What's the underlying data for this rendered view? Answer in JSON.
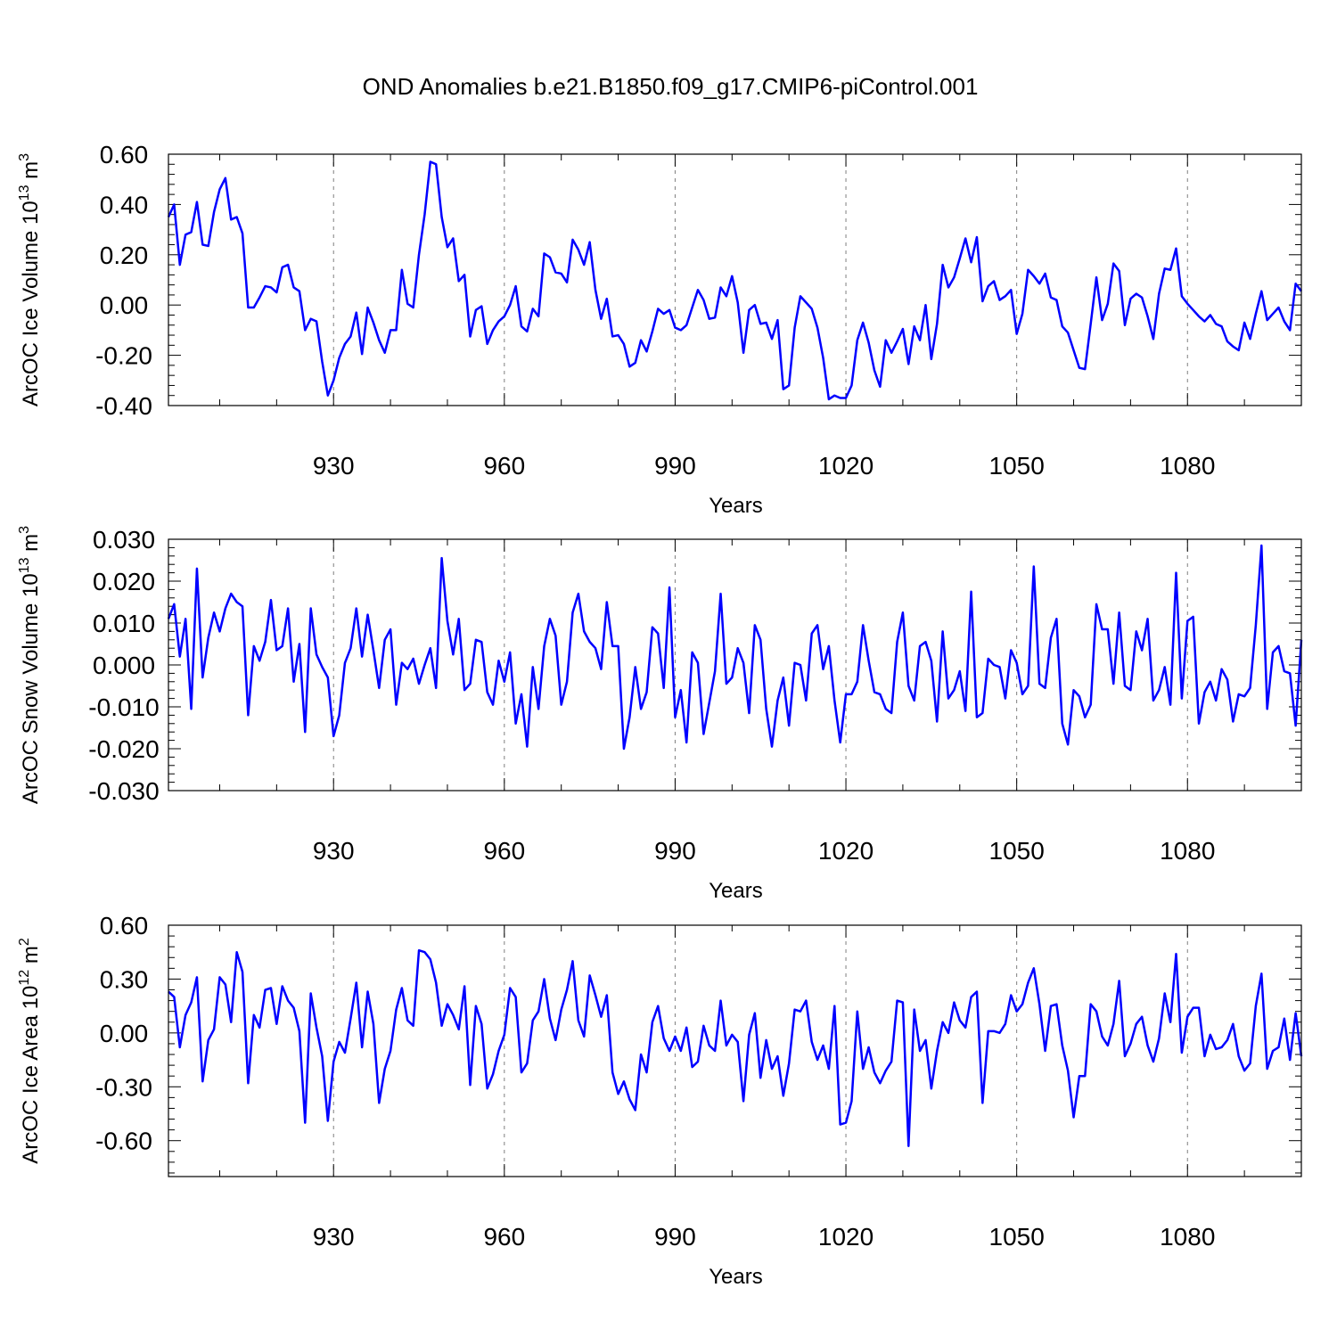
{
  "title": "OND Anomalies b.e21.B1850.f09_g17.CMIP6-piControl.001",
  "colors": {
    "line": "#0000ff",
    "axis": "#000000",
    "grid": "#7f7f7f",
    "background": "#ffffff"
  },
  "chart_data": [
    {
      "type": "line",
      "name": "ice-volume",
      "ylabel": "ArcOC Ice Volume 10",
      "ylabel_sup": "13",
      "ylabel_unit": " m",
      "ylabel_unit_sup": "3",
      "xlabel": "Years",
      "xlim": [
        901,
        1100
      ],
      "xticks": [
        930,
        960,
        990,
        1020,
        1050,
        1080
      ],
      "xtick_labels": [
        "930",
        "960",
        "990",
        "1020",
        "1050",
        "1080"
      ],
      "ylim": [
        -0.4,
        0.6
      ],
      "yticks": [
        -0.4,
        -0.2,
        0.0,
        0.2,
        0.4,
        0.6
      ],
      "ytick_labels": [
        "-0.40",
        "-0.20",
        "0.00",
        "0.20",
        "0.40",
        "0.60"
      ],
      "series": [
        {
          "name": "ArcOC Ice Volume",
          "values": [
            0.35,
            0.4,
            0.16,
            0.28,
            0.29,
            0.41,
            0.24,
            0.235,
            0.37,
            0.46,
            0.505,
            0.34,
            0.35,
            0.285,
            -0.01,
            -0.01,
            0.03,
            0.075,
            0.07,
            0.05,
            0.15,
            0.16,
            0.07,
            0.055,
            -0.1,
            -0.055,
            -0.065,
            -0.225,
            -0.36,
            -0.3,
            -0.21,
            -0.155,
            -0.125,
            -0.03,
            -0.195,
            -0.01,
            -0.07,
            -0.14,
            -0.19,
            -0.1,
            -0.1,
            0.14,
            0.005,
            -0.01,
            0.2,
            0.36,
            0.57,
            0.56,
            0.35,
            0.23,
            0.265,
            0.095,
            0.12,
            -0.125,
            -0.02,
            -0.005,
            -0.155,
            -0.1,
            -0.065,
            -0.045,
            0.0,
            0.075,
            -0.085,
            -0.105,
            -0.015,
            -0.045,
            0.205,
            0.19,
            0.13,
            0.125,
            0.09,
            0.26,
            0.22,
            0.16,
            0.25,
            0.06,
            -0.055,
            0.025,
            -0.125,
            -0.12,
            -0.155,
            -0.245,
            -0.23,
            -0.14,
            -0.185,
            -0.105,
            -0.015,
            -0.035,
            -0.02,
            -0.09,
            -0.1,
            -0.08,
            -0.01,
            0.06,
            0.02,
            -0.055,
            -0.05,
            0.07,
            0.035,
            0.115,
            0.01,
            -0.19,
            -0.02,
            0.0,
            -0.075,
            -0.07,
            -0.135,
            -0.06,
            -0.335,
            -0.32,
            -0.09,
            0.035,
            0.01,
            -0.015,
            -0.09,
            -0.21,
            -0.375,
            -0.36,
            -0.37,
            -0.37,
            -0.32,
            -0.14,
            -0.07,
            -0.15,
            -0.26,
            -0.325,
            -0.14,
            -0.19,
            -0.145,
            -0.095,
            -0.235,
            -0.085,
            -0.14,
            0.0,
            -0.215,
            -0.075,
            0.16,
            0.07,
            0.11,
            0.185,
            0.265,
            0.17,
            0.27,
            0.015,
            0.075,
            0.095,
            0.02,
            0.035,
            0.06,
            -0.115,
            -0.035,
            0.14,
            0.115,
            0.085,
            0.125,
            0.03,
            0.02,
            -0.085,
            -0.11,
            -0.18,
            -0.25,
            -0.255,
            -0.075,
            0.11,
            -0.06,
            0.005,
            0.165,
            0.135,
            -0.08,
            0.025,
            0.045,
            0.03,
            -0.045,
            -0.135,
            0.045,
            0.145,
            0.14,
            0.225,
            0.035,
            0.005,
            -0.02,
            -0.045,
            -0.065,
            -0.04,
            -0.075,
            -0.085,
            -0.145,
            -0.165,
            -0.18,
            -0.07,
            -0.135,
            -0.035,
            0.055,
            -0.06,
            -0.035,
            -0.01,
            -0.065,
            -0.1,
            0.085,
            0.055
          ]
        }
      ]
    },
    {
      "type": "line",
      "name": "snow-volume",
      "ylabel": "ArcOC Snow Volume 10",
      "ylabel_sup": "13",
      "ylabel_unit": " m",
      "ylabel_unit_sup": "3",
      "xlabel": "Years",
      "xlim": [
        901,
        1100
      ],
      "xticks": [
        930,
        960,
        990,
        1020,
        1050,
        1080
      ],
      "xtick_labels": [
        "930",
        "960",
        "990",
        "1020",
        "1050",
        "1080"
      ],
      "ylim": [
        -0.03,
        0.03
      ],
      "yticks": [
        -0.03,
        -0.02,
        -0.01,
        0.0,
        0.01,
        0.02,
        0.03
      ],
      "ytick_labels": [
        "-0.030",
        "-0.020",
        "-0.010",
        "0.000",
        "0.010",
        "0.020",
        "0.030"
      ],
      "series": [
        {
          "name": "ArcOC Snow Volume",
          "values": [
            0.011,
            0.0145,
            0.002,
            0.011,
            -0.0105,
            0.023,
            -0.003,
            0.0065,
            0.0125,
            0.008,
            0.0135,
            0.017,
            0.015,
            0.014,
            -0.012,
            0.0045,
            0.001,
            0.0055,
            0.0155,
            0.0035,
            0.0045,
            0.0135,
            -0.004,
            0.005,
            -0.016,
            0.0135,
            0.0025,
            -0.0005,
            -0.003,
            -0.017,
            -0.012,
            0.0005,
            0.004,
            0.0135,
            0.002,
            0.012,
            0.0035,
            -0.0055,
            0.006,
            0.0085,
            -0.0095,
            0.0005,
            -0.001,
            0.0015,
            -0.0045,
            0.0,
            0.004,
            -0.0055,
            0.0255,
            0.0105,
            0.0025,
            0.011,
            -0.006,
            -0.0045,
            0.006,
            0.0055,
            -0.0065,
            -0.0095,
            0.001,
            -0.004,
            0.003,
            -0.014,
            -0.007,
            -0.0195,
            -0.0005,
            -0.0105,
            0.0045,
            0.011,
            0.007,
            -0.0095,
            -0.004,
            0.0125,
            0.017,
            0.008,
            0.0055,
            0.004,
            -0.001,
            0.015,
            0.0045,
            0.0045,
            -0.02,
            -0.0125,
            -0.0005,
            -0.0105,
            -0.0065,
            0.009,
            0.0075,
            -0.0055,
            0.0185,
            -0.0125,
            -0.006,
            -0.0185,
            0.003,
            0.0005,
            -0.0165,
            -0.009,
            -0.0015,
            0.017,
            -0.0045,
            -0.003,
            0.004,
            0.0005,
            -0.0115,
            0.0095,
            0.006,
            -0.0105,
            -0.0195,
            -0.0085,
            -0.003,
            -0.0145,
            0.0005,
            0.0,
            -0.0085,
            0.0075,
            0.0095,
            -0.001,
            0.0045,
            -0.0085,
            -0.0185,
            -0.007,
            -0.007,
            -0.004,
            0.0095,
            0.001,
            -0.0065,
            -0.007,
            -0.0105,
            -0.0115,
            0.0055,
            0.0125,
            -0.005,
            -0.0085,
            0.0045,
            0.0055,
            0.001,
            -0.0135,
            0.008,
            -0.008,
            -0.006,
            -0.0015,
            -0.011,
            0.0175,
            -0.0125,
            -0.0115,
            0.0015,
            0.0,
            -0.0005,
            -0.008,
            0.0035,
            0.0005,
            -0.007,
            -0.005,
            0.0235,
            -0.0045,
            -0.0055,
            0.0065,
            0.011,
            -0.014,
            -0.019,
            -0.006,
            -0.0075,
            -0.0125,
            -0.0095,
            0.0145,
            0.0085,
            0.0085,
            -0.0045,
            0.0125,
            -0.005,
            -0.006,
            0.008,
            0.0035,
            0.011,
            -0.0085,
            -0.006,
            -0.0005,
            -0.0095,
            0.022,
            -0.008,
            0.0105,
            0.0115,
            -0.014,
            -0.0065,
            -0.004,
            -0.0085,
            -0.001,
            -0.0035,
            -0.0135,
            -0.007,
            -0.0075,
            -0.0055,
            0.0095,
            0.0285,
            -0.0105,
            0.003,
            0.0045,
            -0.0015,
            -0.002,
            -0.0145,
            0.006
          ]
        }
      ]
    },
    {
      "type": "line",
      "name": "ice-area",
      "ylabel": "ArcOC Ice Area 10",
      "ylabel_sup": "12",
      "ylabel_unit": " m",
      "ylabel_unit_sup": "2",
      "xlabel": "Years",
      "xlim": [
        901,
        1100
      ],
      "xticks": [
        930,
        960,
        990,
        1020,
        1050,
        1080
      ],
      "xtick_labels": [
        "930",
        "960",
        "990",
        "1020",
        "1050",
        "1080"
      ],
      "ylim": [
        -0.8,
        0.6
      ],
      "yticks": [
        -0.6,
        -0.3,
        0.0,
        0.3,
        0.6
      ],
      "ytick_labels": [
        "-0.60",
        "-0.30",
        "0.00",
        "0.30",
        "0.60"
      ],
      "series": [
        {
          "name": "ArcOC Ice Area",
          "values": [
            0.23,
            0.2,
            -0.08,
            0.1,
            0.17,
            0.31,
            -0.27,
            -0.04,
            0.02,
            0.31,
            0.27,
            0.06,
            0.45,
            0.34,
            -0.28,
            0.1,
            0.03,
            0.24,
            0.25,
            0.05,
            0.26,
            0.18,
            0.14,
            0.01,
            -0.5,
            0.22,
            0.03,
            -0.13,
            -0.49,
            -0.16,
            -0.05,
            -0.11,
            0.08,
            0.28,
            -0.08,
            0.23,
            0.05,
            -0.39,
            -0.2,
            -0.1,
            0.13,
            0.25,
            0.07,
            0.04,
            0.46,
            0.45,
            0.41,
            0.28,
            0.04,
            0.16,
            0.1,
            0.02,
            0.26,
            -0.29,
            0.15,
            0.05,
            -0.31,
            -0.23,
            -0.1,
            -0.01,
            0.25,
            0.2,
            -0.22,
            -0.17,
            0.07,
            0.12,
            0.3,
            0.08,
            -0.04,
            0.13,
            0.24,
            0.4,
            0.07,
            -0.02,
            0.32,
            0.21,
            0.09,
            0.21,
            -0.22,
            -0.34,
            -0.27,
            -0.37,
            -0.43,
            -0.12,
            -0.22,
            0.06,
            0.15,
            -0.03,
            -0.1,
            -0.02,
            -0.1,
            0.03,
            -0.19,
            -0.16,
            0.04,
            -0.07,
            -0.1,
            0.18,
            -0.07,
            -0.01,
            -0.05,
            -0.38,
            -0.01,
            0.11,
            -0.25,
            -0.04,
            -0.2,
            -0.13,
            -0.35,
            -0.17,
            0.13,
            0.12,
            0.18,
            -0.05,
            -0.15,
            -0.07,
            -0.2,
            0.15,
            -0.51,
            -0.5,
            -0.38,
            0.12,
            -0.2,
            -0.08,
            -0.22,
            -0.28,
            -0.21,
            -0.16,
            0.18,
            0.17,
            -0.63,
            0.13,
            -0.1,
            -0.04,
            -0.31,
            -0.1,
            0.06,
            0.0,
            0.17,
            0.07,
            0.03,
            0.2,
            0.23,
            -0.39,
            0.01,
            0.01,
            0.0,
            0.05,
            0.21,
            0.12,
            0.16,
            0.28,
            0.36,
            0.16,
            -0.1,
            0.15,
            0.16,
            -0.07,
            -0.21,
            -0.47,
            -0.24,
            -0.24,
            0.16,
            0.12,
            -0.02,
            -0.07,
            0.05,
            0.29,
            -0.13,
            -0.06,
            0.05,
            0.09,
            -0.07,
            -0.16,
            -0.03,
            0.22,
            0.06,
            0.44,
            -0.11,
            0.09,
            0.14,
            0.14,
            -0.13,
            -0.01,
            -0.09,
            -0.08,
            -0.04,
            0.05,
            -0.13,
            -0.21,
            -0.17,
            0.15,
            0.33,
            -0.2,
            -0.1,
            -0.08,
            0.08,
            -0.15,
            0.11,
            -0.13
          ]
        }
      ]
    }
  ]
}
